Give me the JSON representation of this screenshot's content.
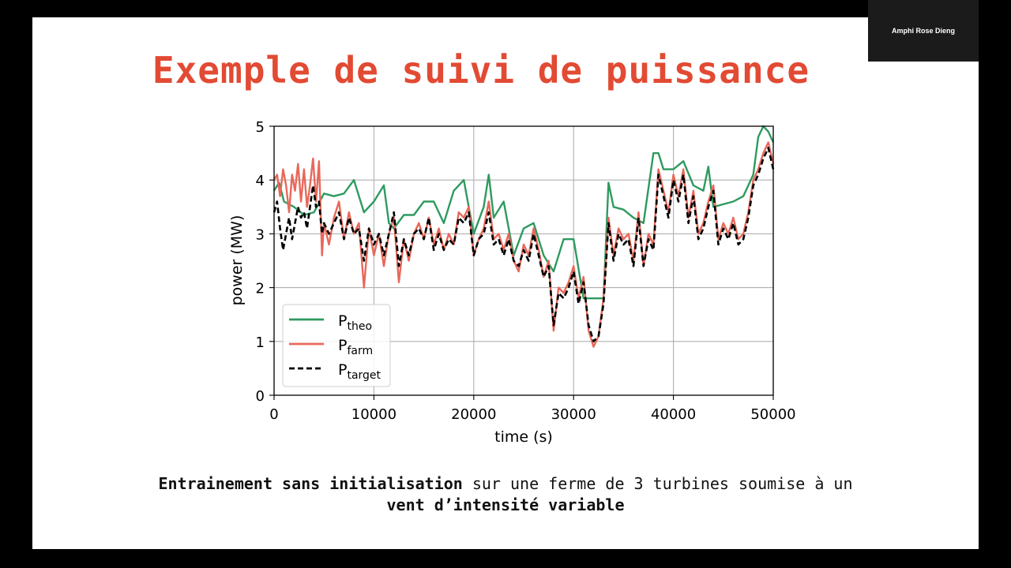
{
  "slide": {
    "title": "Exemple de suivi de puissance",
    "caption_bold_1": "Entrainement sans initialisation",
    "caption_normal": " sur une ferme de 3 turbines soumise à un",
    "caption_bold_2": "vent d’intensité variable"
  },
  "participant": {
    "name": "Amphi Rose Dieng"
  },
  "chart_data": {
    "type": "line",
    "xlabel": "time (s)",
    "ylabel": "power (MW)",
    "xlim": [
      0,
      50000
    ],
    "ylim": [
      0,
      5
    ],
    "xticks": [
      0,
      10000,
      20000,
      30000,
      40000,
      50000
    ],
    "yticks": [
      0,
      1,
      2,
      3,
      4,
      5
    ],
    "grid": true,
    "legend_position": "bottom-left",
    "series": [
      {
        "name": "P",
        "subscript": "theo",
        "color": "#2e9a5f",
        "dash": "",
        "x": [
          0,
          500,
          1000,
          2000,
          3000,
          4000,
          5000,
          6000,
          7000,
          8000,
          9000,
          10000,
          11000,
          11500,
          12000,
          13000,
          14000,
          15000,
          16000,
          17000,
          18000,
          19000,
          20000,
          21000,
          21500,
          22000,
          23000,
          24000,
          25000,
          26000,
          27000,
          28000,
          29000,
          30000,
          31000,
          32000,
          33000,
          33500,
          34000,
          35000,
          36000,
          37000,
          38000,
          38500,
          39000,
          40000,
          41000,
          42000,
          43000,
          43500,
          44000,
          45000,
          46000,
          47000,
          48000,
          48500,
          49000,
          49500,
          50000
        ],
        "y": [
          3.8,
          3.95,
          3.6,
          3.5,
          3.35,
          3.4,
          3.75,
          3.7,
          3.75,
          4.0,
          3.4,
          3.6,
          3.9,
          3.2,
          3.1,
          3.35,
          3.35,
          3.6,
          3.6,
          3.2,
          3.8,
          4.0,
          3.0,
          3.5,
          4.1,
          3.3,
          3.6,
          2.6,
          3.1,
          3.2,
          2.6,
          2.3,
          2.9,
          2.9,
          1.8,
          1.8,
          1.8,
          3.95,
          3.5,
          3.45,
          3.3,
          3.2,
          4.5,
          4.5,
          4.2,
          4.2,
          4.35,
          3.9,
          3.8,
          4.25,
          3.5,
          3.55,
          3.6,
          3.7,
          4.1,
          4.8,
          5.0,
          4.9,
          4.7
        ]
      },
      {
        "name": "P",
        "subscript": "farm",
        "color": "#e8685a",
        "dash": "",
        "x": [
          0,
          300,
          600,
          900,
          1200,
          1500,
          1800,
          2100,
          2400,
          2700,
          3000,
          3300,
          3600,
          3900,
          4200,
          4500,
          4800,
          5000,
          5500,
          6000,
          6500,
          7000,
          7500,
          8000,
          8500,
          9000,
          9500,
          10000,
          10500,
          11000,
          11500,
          12000,
          12500,
          13000,
          13500,
          14000,
          14500,
          15000,
          15500,
          16000,
          16500,
          17000,
          17500,
          18000,
          18500,
          19000,
          19500,
          20000,
          20500,
          21000,
          21500,
          22000,
          22500,
          23000,
          23500,
          24000,
          24500,
          25000,
          25500,
          26000,
          26500,
          27000,
          27500,
          28000,
          28500,
          29000,
          29500,
          30000,
          30500,
          31000,
          31500,
          32000,
          32500,
          33000,
          33500,
          34000,
          34500,
          35000,
          35500,
          36000,
          36500,
          37000,
          37500,
          38000,
          38500,
          39000,
          39500,
          40000,
          40500,
          41000,
          41500,
          42000,
          42500,
          43000,
          43500,
          44000,
          44500,
          45000,
          45500,
          46000,
          46500,
          47000,
          47500,
          48000,
          48500,
          49000,
          49500,
          50000
        ],
        "y": [
          4.0,
          4.1,
          3.7,
          4.2,
          3.9,
          3.4,
          4.1,
          3.8,
          4.3,
          3.6,
          4.2,
          3.5,
          3.9,
          4.4,
          3.6,
          4.35,
          2.6,
          3.2,
          2.8,
          3.3,
          3.6,
          2.9,
          3.4,
          3.0,
          3.2,
          2.0,
          3.1,
          2.6,
          3.0,
          2.4,
          3.0,
          3.3,
          2.1,
          2.9,
          2.5,
          3.0,
          3.2,
          2.9,
          3.3,
          2.8,
          3.1,
          2.7,
          3.0,
          2.8,
          3.4,
          3.3,
          3.5,
          2.6,
          2.9,
          3.1,
          3.6,
          2.9,
          3.0,
          2.7,
          3.0,
          2.5,
          2.3,
          2.8,
          2.6,
          3.1,
          2.7,
          2.2,
          2.5,
          1.2,
          2.0,
          1.9,
          2.1,
          2.4,
          1.8,
          2.2,
          1.2,
          0.9,
          1.1,
          1.8,
          3.3,
          2.6,
          3.1,
          2.9,
          3.0,
          2.5,
          3.4,
          2.4,
          3.0,
          2.8,
          4.2,
          3.8,
          3.4,
          4.1,
          3.7,
          4.2,
          3.3,
          3.8,
          3.0,
          3.2,
          3.6,
          3.9,
          2.9,
          3.2,
          3.0,
          3.3,
          2.9,
          3.0,
          3.4,
          4.0,
          4.2,
          4.5,
          4.7,
          4.3
        ]
      },
      {
        "name": "P",
        "subscript": "target",
        "color": "#000000",
        "dash": "7,4",
        "x": [
          0,
          300,
          600,
          900,
          1200,
          1500,
          1800,
          2100,
          2400,
          2700,
          3000,
          3300,
          3600,
          3900,
          4200,
          4500,
          4800,
          5000,
          5500,
          6000,
          6500,
          7000,
          7500,
          8000,
          8500,
          9000,
          9500,
          10000,
          10500,
          11000,
          11500,
          12000,
          12500,
          13000,
          13500,
          14000,
          14500,
          15000,
          15500,
          16000,
          16500,
          17000,
          17500,
          18000,
          18500,
          19000,
          19500,
          20000,
          20500,
          21000,
          21500,
          22000,
          22500,
          23000,
          23500,
          24000,
          24500,
          25000,
          25500,
          26000,
          26500,
          27000,
          27500,
          28000,
          28500,
          29000,
          29500,
          30000,
          30500,
          31000,
          31500,
          32000,
          32500,
          33000,
          33500,
          34000,
          34500,
          35000,
          35500,
          36000,
          36500,
          37000,
          37500,
          38000,
          38500,
          39000,
          39500,
          40000,
          40500,
          41000,
          41500,
          42000,
          42500,
          43000,
          43500,
          44000,
          44500,
          45000,
          45500,
          46000,
          46500,
          47000,
          47500,
          48000,
          48500,
          49000,
          49500,
          50000
        ],
        "y": [
          3.4,
          3.6,
          3.1,
          2.7,
          3.0,
          3.3,
          2.9,
          3.2,
          3.5,
          3.3,
          3.4,
          3.1,
          3.5,
          3.9,
          3.5,
          3.6,
          3.0,
          3.2,
          3.0,
          3.2,
          3.4,
          2.9,
          3.3,
          3.0,
          3.1,
          2.5,
          3.1,
          2.8,
          3.0,
          2.6,
          3.0,
          3.4,
          2.4,
          2.9,
          2.6,
          3.0,
          3.1,
          2.9,
          3.3,
          2.7,
          3.0,
          2.7,
          2.9,
          2.8,
          3.3,
          3.2,
          3.4,
          2.6,
          2.9,
          3.0,
          3.4,
          2.8,
          2.9,
          2.6,
          2.9,
          2.5,
          2.4,
          2.7,
          2.5,
          3.0,
          2.6,
          2.2,
          2.4,
          1.3,
          1.9,
          1.8,
          2.0,
          2.3,
          1.7,
          2.1,
          1.3,
          1.0,
          1.1,
          1.7,
          3.2,
          2.5,
          3.0,
          2.8,
          2.9,
          2.4,
          3.3,
          2.4,
          2.9,
          2.7,
          4.1,
          3.7,
          3.3,
          4.0,
          3.6,
          4.1,
          3.2,
          3.7,
          2.9,
          3.1,
          3.5,
          3.8,
          2.8,
          3.1,
          2.9,
          3.2,
          2.8,
          2.9,
          3.3,
          3.9,
          4.1,
          4.4,
          4.6,
          4.2
        ]
      }
    ]
  }
}
